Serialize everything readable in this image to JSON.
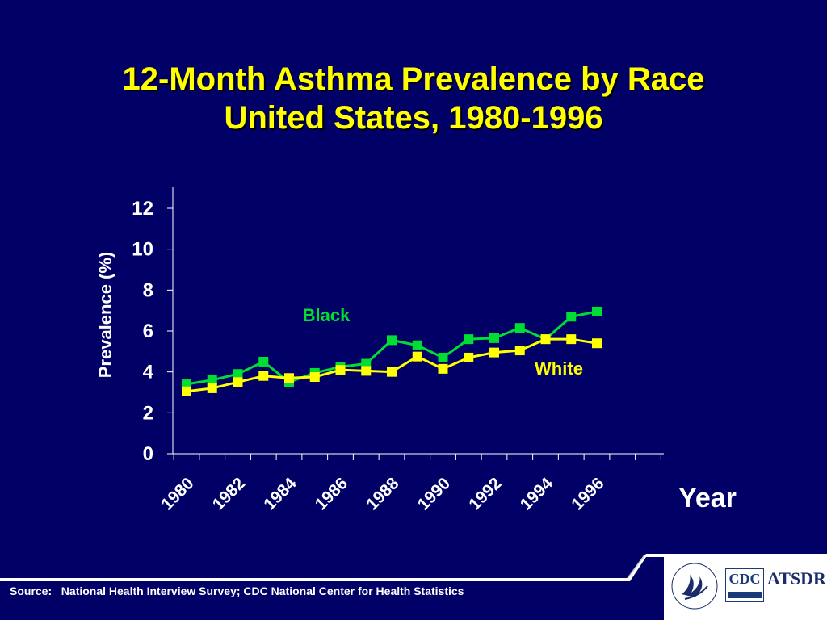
{
  "title": {
    "line1": "12-Month Asthma Prevalence by Race",
    "line2": "United States, 1980-1996"
  },
  "colors": {
    "background": "#000066",
    "title": "#ffff00",
    "black_series": "#00dd33",
    "white_series": "#ffff00",
    "axis_text": "#ffffff"
  },
  "chart_data": {
    "type": "line",
    "ylabel": "Prevalence (%)",
    "xlabel": "Year",
    "ylim": [
      0,
      12
    ],
    "yticks": [
      0,
      2,
      4,
      6,
      8,
      10,
      12
    ],
    "xtick_labels": [
      "1980",
      "1982",
      "1984",
      "1986",
      "1988",
      "1990",
      "1992",
      "1994",
      "1996"
    ],
    "x": [
      1980,
      1981,
      1982,
      1983,
      1984,
      1985,
      1986,
      1987,
      1988,
      1989,
      1990,
      1991,
      1992,
      1993,
      1994,
      1995,
      1996
    ],
    "series": [
      {
        "name": "Black",
        "color": "#00dd33",
        "values": [
          3.4,
          3.6,
          3.9,
          4.5,
          3.5,
          3.95,
          4.25,
          4.4,
          5.55,
          5.3,
          4.7,
          5.6,
          5.65,
          6.15,
          5.6,
          6.7,
          6.95
        ]
      },
      {
        "name": "White",
        "color": "#ffff00",
        "values": [
          3.05,
          3.2,
          3.5,
          3.8,
          3.7,
          3.75,
          4.1,
          4.05,
          4.0,
          4.75,
          4.15,
          4.7,
          4.95,
          5.05,
          5.6,
          5.6,
          5.4
        ]
      }
    ],
    "grid": false
  },
  "footer": {
    "source_label": "Source:",
    "source_text": "National Health Interview Survey; CDC National Center for Health Statistics",
    "logos": {
      "cdc_text": "CDC",
      "atsdr_text": "ATSDR"
    }
  }
}
